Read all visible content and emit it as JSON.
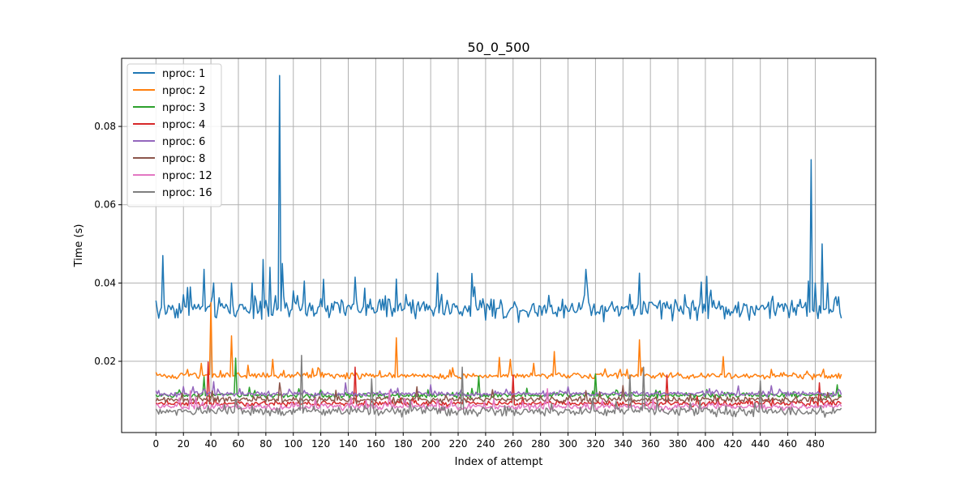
{
  "chart_data": {
    "type": "line",
    "title": "50_0_500",
    "xlabel": "Index of attempt",
    "ylabel": "Time (s)",
    "xlim": [
      -25,
      524
    ],
    "ylim": [
      0.0018,
      0.0974
    ],
    "xticks": [
      0,
      20,
      40,
      60,
      80,
      100,
      120,
      140,
      160,
      180,
      200,
      220,
      240,
      260,
      280,
      300,
      320,
      340,
      360,
      380,
      400,
      420,
      440,
      460,
      480
    ],
    "yticks": [
      0.02,
      0.04,
      0.06,
      0.08
    ],
    "ytick_labels": [
      "0.02",
      "0.04",
      "0.06",
      "0.08"
    ],
    "grid": true,
    "legend_position": "top-left",
    "n_points": 500,
    "series": [
      {
        "name": "nproc: 1",
        "color": "#1f77b4",
        "base": 0.0335,
        "noise": 0.0025,
        "spikes": [
          [
            0,
            0.0355
          ],
          [
            2,
            0.031
          ],
          [
            5,
            0.047
          ],
          [
            7,
            0.032
          ],
          [
            10,
            0.034
          ],
          [
            20,
            0.037
          ],
          [
            25,
            0.039
          ],
          [
            35,
            0.0435
          ],
          [
            42,
            0.04
          ],
          [
            55,
            0.04
          ],
          [
            70,
            0.04
          ],
          [
            78,
            0.046
          ],
          [
            83,
            0.044
          ],
          [
            90,
            0.093
          ],
          [
            92,
            0.045
          ],
          [
            100,
            0.038
          ],
          [
            108,
            0.0405
          ],
          [
            145,
            0.0415
          ],
          [
            175,
            0.041
          ],
          [
            205,
            0.0425
          ],
          [
            313,
            0.0435
          ],
          [
            352,
            0.0425
          ],
          [
            385,
            0.037
          ],
          [
            467,
            0.0345
          ],
          [
            475,
            0.0405
          ],
          [
            477,
            0.0715
          ],
          [
            480,
            0.04
          ],
          [
            485,
            0.05
          ],
          [
            489,
            0.04
          ],
          [
            495,
            0.0365
          ],
          [
            499,
            0.031
          ]
        ]
      },
      {
        "name": "nproc: 2",
        "color": "#ff7f0e",
        "base": 0.0163,
        "noise": 0.0007,
        "spikes": [
          [
            0,
            0.0172
          ],
          [
            33,
            0.0195
          ],
          [
            40,
            0.035
          ],
          [
            55,
            0.0265
          ],
          [
            67,
            0.019
          ],
          [
            85,
            0.0205
          ],
          [
            175,
            0.026
          ],
          [
            250,
            0.021
          ],
          [
            258,
            0.0205
          ],
          [
            275,
            0.0195
          ],
          [
            290,
            0.0225
          ],
          [
            352,
            0.0255
          ],
          [
            413,
            0.0212
          ],
          [
            499,
            0.0167
          ]
        ]
      },
      {
        "name": "nproc: 3",
        "color": "#2ca02c",
        "base": 0.0113,
        "noise": 0.0006,
        "spikes": [
          [
            35,
            0.016
          ],
          [
            58,
            0.0208
          ],
          [
            235,
            0.0162
          ],
          [
            320,
            0.0168
          ],
          [
            496,
            0.014
          ]
        ]
      },
      {
        "name": "nproc: 4",
        "color": "#d62728",
        "base": 0.0092,
        "noise": 0.0006,
        "spikes": [
          [
            38,
            0.0198
          ],
          [
            145,
            0.0185
          ],
          [
            260,
            0.0165
          ],
          [
            372,
            0.0165
          ],
          [
            483,
            0.0145
          ]
        ]
      },
      {
        "name": "nproc: 6",
        "color": "#9467bd",
        "base": 0.0117,
        "noise": 0.0006,
        "spikes": [
          [
            42,
            0.0148
          ],
          [
            138,
            0.0145
          ],
          [
            200,
            0.014
          ],
          [
            300,
            0.0135
          ]
        ]
      },
      {
        "name": "nproc: 8",
        "color": "#8c564b",
        "base": 0.0102,
        "noise": 0.0007,
        "spikes": [
          [
            90,
            0.0145
          ],
          [
            190,
            0.0135
          ],
          [
            340,
            0.0138
          ]
        ]
      },
      {
        "name": "nproc: 12",
        "color": "#e377c2",
        "base": 0.0084,
        "noise": 0.0008,
        "spikes": [
          [
            25,
            0.0125
          ],
          [
            170,
            0.0125
          ],
          [
            285,
            0.013
          ]
        ]
      },
      {
        "name": "nproc: 16",
        "color": "#7f7f7f",
        "base": 0.0072,
        "noise": 0.0011,
        "spikes": [
          [
            106,
            0.0215
          ],
          [
            157,
            0.0155
          ],
          [
            223,
            0.0185
          ],
          [
            345,
            0.0165
          ],
          [
            355,
            0.0185
          ],
          [
            440,
            0.015
          ]
        ]
      }
    ]
  }
}
